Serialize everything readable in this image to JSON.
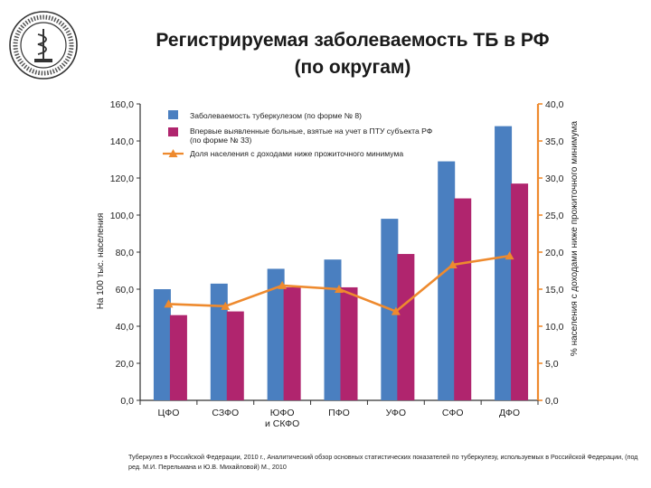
{
  "slide": {
    "title_line1": "Регистрируемая заболеваемость ТБ в РФ",
    "title_line2": "(по округам)",
    "source": "Туберкулез в Российской Федерации, 2010 г., Аналитический обзор основных статистических показателей по туберкулезу, используемых в Российской Федерации, (под ред. М.И. Перельмана и Ю.В. Михайловой) М., 2010"
  },
  "colors": {
    "series1": "#4a7fc0",
    "series2": "#b0256e",
    "line": "#ee8a2e",
    "axis": "#333333",
    "right_axis": "#ee8a2e"
  },
  "chart_data": {
    "type": "bar",
    "categories": [
      "ЦФО",
      "СЗФО",
      "ЮФО\nи СКФО",
      "ПФО",
      "УФО",
      "СФО",
      "ДФО"
    ],
    "series": [
      {
        "name": "Заболеваемость туберкулезом (по форме № 8)",
        "axis": "left",
        "values": [
          60,
          63,
          71,
          76,
          98,
          129,
          148
        ]
      },
      {
        "name": "Впервые выявленные больные, взятые на учет в ПТУ субъекта РФ (по форме № 33)",
        "axis": "left",
        "values": [
          46,
          48,
          61,
          61,
          79,
          109,
          117
        ]
      },
      {
        "name": "Доля населения с доходами ниже прожиточного минимума",
        "axis": "right",
        "type": "line",
        "values": [
          13.0,
          12.7,
          15.5,
          15.0,
          12.0,
          18.3,
          19.5
        ]
      }
    ],
    "ylabel_left": "На 100 тыс. населения",
    "ylabel_right": "% населения с доходами ниже прожиточного минимума",
    "ylim_left": [
      0,
      160
    ],
    "ylim_right": [
      0,
      40
    ],
    "yticks_left": [
      "0,0",
      "20,0",
      "40,0",
      "60,0",
      "80,0",
      "100,0",
      "120,0",
      "140,0",
      "160,0"
    ],
    "yticks_right": [
      "0,0",
      "5,0",
      "10,0",
      "15,0",
      "20,0",
      "25,0",
      "30,0",
      "35,0",
      "40,0"
    ],
    "legend_placement": "top-left",
    "grid": false
  }
}
